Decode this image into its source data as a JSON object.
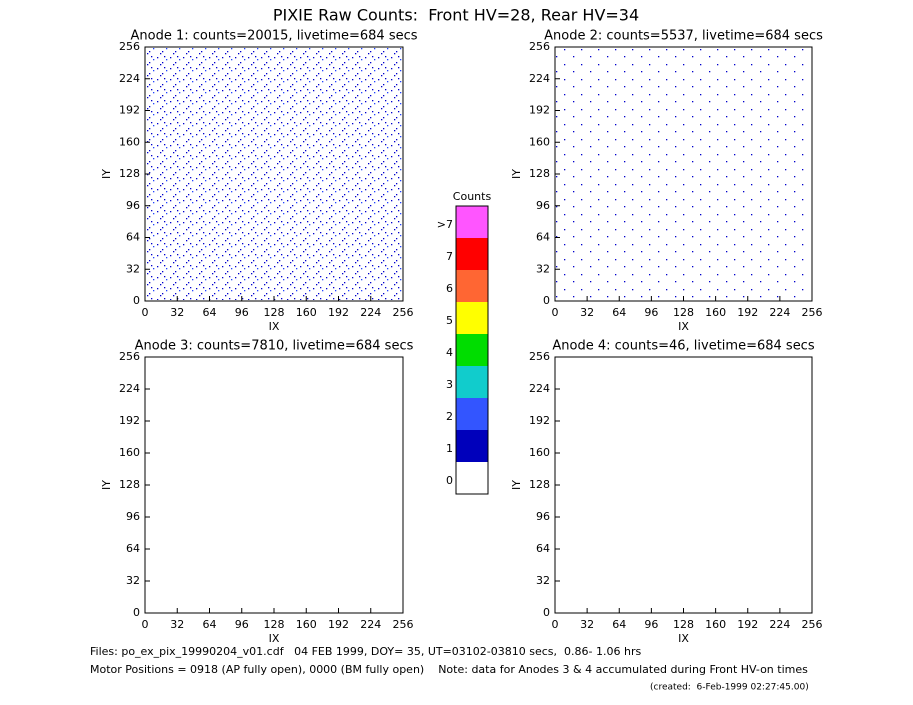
{
  "title": "PIXIE Raw Counts:  Front HV=28, Rear HV=34",
  "chart_data": [
    {
      "type": "heatmap",
      "title": "Anode 1: counts=20015, livetime=684 secs",
      "xlabel": "IX",
      "ylabel": "IY",
      "xlim": [
        0,
        256
      ],
      "ylim": [
        0,
        256
      ],
      "xticks": [
        0,
        32,
        64,
        96,
        128,
        160,
        192,
        224,
        256
      ],
      "yticks": [
        0,
        32,
        64,
        96,
        128,
        160,
        192,
        224,
        256
      ]
    },
    {
      "type": "heatmap",
      "title": "Anode 2: counts=5537, livetime=684 secs",
      "xlabel": "IX",
      "ylabel": "IY",
      "xlim": [
        0,
        256
      ],
      "ylim": [
        0,
        256
      ],
      "xticks": [
        0,
        32,
        64,
        96,
        128,
        160,
        192,
        224,
        256
      ],
      "yticks": [
        0,
        32,
        64,
        96,
        128,
        160,
        192,
        224,
        256
      ]
    },
    {
      "type": "heatmap",
      "title": "Anode 3: counts=7810, livetime=684 secs",
      "xlabel": "IX",
      "ylabel": "IY",
      "xlim": [
        0,
        256
      ],
      "ylim": [
        0,
        256
      ],
      "xticks": [
        0,
        32,
        64,
        96,
        128,
        160,
        192,
        224,
        256
      ],
      "yticks": [
        0,
        32,
        64,
        96,
        128,
        160,
        192,
        224,
        256
      ]
    },
    {
      "type": "heatmap",
      "title": "Anode 4: counts=46, livetime=684 secs",
      "xlabel": "IX",
      "ylabel": "IY",
      "xlim": [
        0,
        256
      ],
      "ylim": [
        0,
        256
      ],
      "xticks": [
        0,
        32,
        64,
        96,
        128,
        160,
        192,
        224,
        256
      ],
      "yticks": [
        0,
        32,
        64,
        96,
        128,
        160,
        192,
        224,
        256
      ]
    },
    {
      "type": "colorbar",
      "title": "Counts",
      "categories": [
        ">7",
        "7",
        "6",
        "5",
        "4",
        "3",
        "2",
        "1",
        "0"
      ],
      "colors": [
        "#ff55ff",
        "#ff0000",
        "#ff6633",
        "#ffff00",
        "#00dd00",
        "#11cccc",
        "#3355ff",
        "#0000bb",
        "#ffffff"
      ]
    }
  ],
  "footer": [
    "Files: po_ex_pix_19990204_v01.cdf   04 FEB 1999, DOY= 35, UT=03102-03810 secs,  0.86- 1.06 hrs",
    "Motor Positions = 0918 (AP fully open), 0000 (BM fully open)    Note: data for Anodes 3 & 4 accumulated during Front HV-on times",
    "(created:  6-Feb-1999 02:27:45.00)"
  ]
}
